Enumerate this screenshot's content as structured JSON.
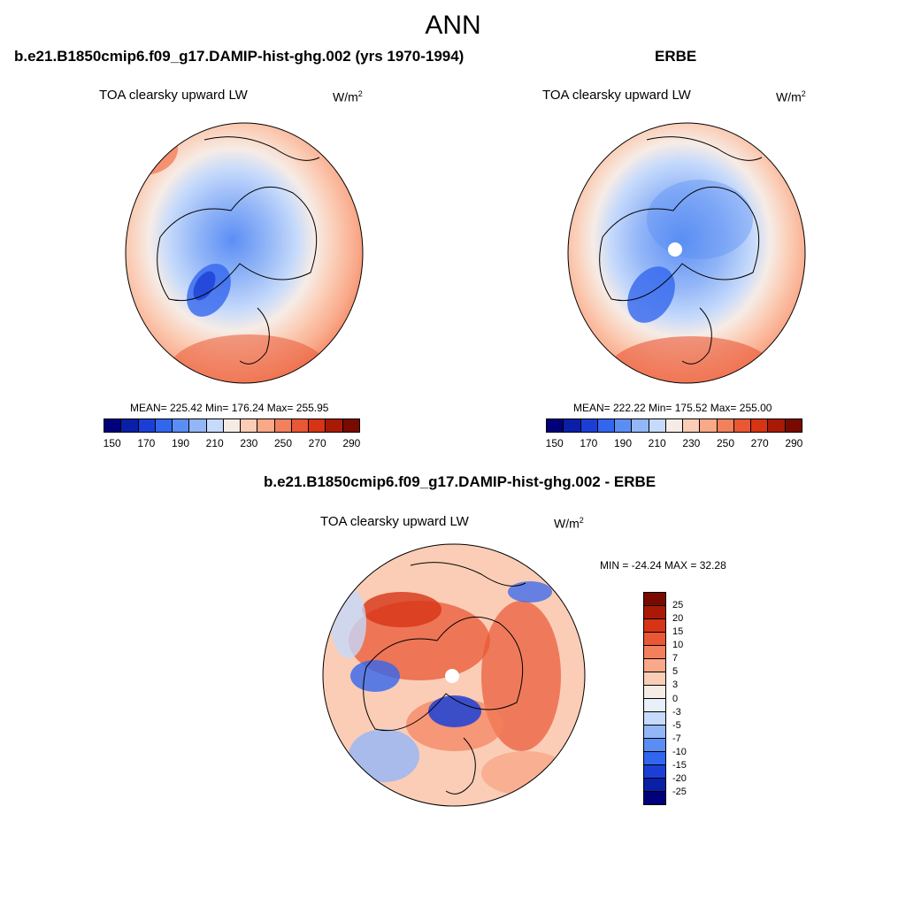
{
  "figure": {
    "title": "ANN"
  },
  "panels": [
    {
      "title": "b.e21.B1850cmip6.f09_g17.DAMIP-hist-ghg.002 (yrs 1970-1994)",
      "variable": "TOA clearsky upward LW",
      "units": "W/m",
      "units_sup": "2",
      "stats": "MEAN= 225.42  Min= 176.24  Max= 255.95"
    },
    {
      "title": "ERBE",
      "variable": "TOA clearsky upward LW",
      "units": "W/m",
      "units_sup": "2",
      "stats": "MEAN= 222.22  Min= 175.52  Max= 255.00"
    },
    {
      "title": "b.e21.B1850cmip6.f09_g17.DAMIP-hist-ghg.002 - ERBE",
      "variable": "TOA clearsky upward LW",
      "units": "W/m",
      "units_sup": "2",
      "stats": "MIN = -24.24 MAX =  32.28"
    }
  ],
  "chart_data": [
    {
      "type": "heatmap",
      "projection": "north polar stereographic",
      "title": "b.e21.B1850cmip6.f09_g17.DAMIP-hist-ghg.002 (yrs 1970-1994)",
      "variable": "TOA clearsky upward LW",
      "units": "W/m2",
      "mean": 225.42,
      "min": 176.24,
      "max": 255.95,
      "colorbar_ticks": [
        "150",
        "170",
        "190",
        "210",
        "230",
        "250",
        "270",
        "290"
      ],
      "colorbar_colors": [
        "#00007a",
        "#0a1fa8",
        "#1b3fd6",
        "#3366ee",
        "#5b8ef5",
        "#93b6f7",
        "#c6dafb",
        "#f6ece6",
        "#fbcdb6",
        "#f9a888",
        "#f3805c",
        "#ea5735",
        "#d63415",
        "#a81a05",
        "#780a00"
      ]
    },
    {
      "type": "heatmap",
      "projection": "north polar stereographic",
      "title": "ERBE",
      "variable": "TOA clearsky upward LW",
      "units": "W/m2",
      "mean": 222.22,
      "min": 175.52,
      "max": 255.0,
      "colorbar_ticks": [
        "150",
        "170",
        "190",
        "210",
        "230",
        "250",
        "270",
        "290"
      ],
      "colorbar_colors": [
        "#00007a",
        "#0a1fa8",
        "#1b3fd6",
        "#3366ee",
        "#5b8ef5",
        "#93b6f7",
        "#c6dafb",
        "#f6ece6",
        "#fbcdb6",
        "#f9a888",
        "#f3805c",
        "#ea5735",
        "#d63415",
        "#a81a05",
        "#780a00"
      ]
    },
    {
      "type": "heatmap",
      "projection": "north polar stereographic",
      "title": "b.e21.B1850cmip6.f09_g17.DAMIP-hist-ghg.002 - ERBE",
      "variable": "TOA clearsky upward LW",
      "units": "W/m2",
      "min": -24.24,
      "max": 32.28,
      "colorbar_ticks": [
        "25",
        "20",
        "15",
        "10",
        "7",
        "5",
        "3",
        "0",
        "-3",
        "-5",
        "-7",
        "-10",
        "-15",
        "-20",
        "-25"
      ],
      "colorbar_colors": [
        "#780a00",
        "#a81a05",
        "#d63415",
        "#ea5735",
        "#f3805c",
        "#f9a888",
        "#fbcdb6",
        "#f6ece6",
        "#e8f0fb",
        "#c6dafb",
        "#93b6f7",
        "#5b8ef5",
        "#3366ee",
        "#1b3fd6",
        "#0a1fa8",
        "#00007a"
      ]
    }
  ]
}
